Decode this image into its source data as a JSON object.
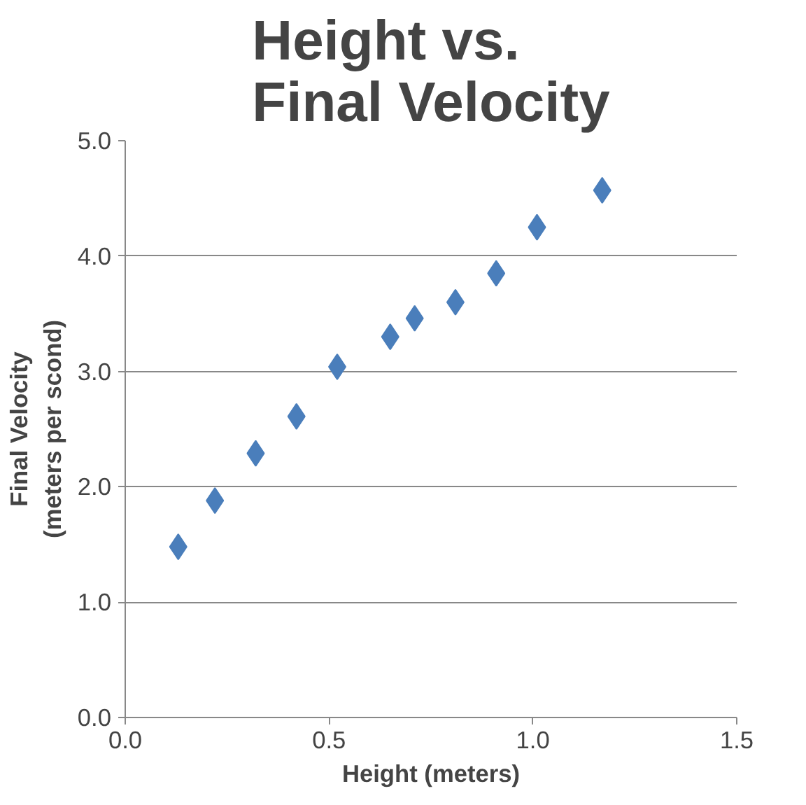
{
  "chart_data": {
    "type": "scatter",
    "title": "Height vs. Final Velocity",
    "xlabel": "Height (meters)",
    "ylabel": "Final Velocity (meters per scond)",
    "x": [
      0.13,
      0.22,
      0.32,
      0.42,
      0.52,
      0.65,
      0.71,
      0.81,
      0.91,
      1.01,
      1.17
    ],
    "series": [
      {
        "color": "#4a7ebb",
        "values": [
          1.48,
          1.88,
          2.29,
          2.61,
          3.04,
          3.3,
          3.46,
          3.6,
          3.85,
          4.25,
          4.57
        ]
      }
    ],
    "xlim": [
      0,
      1.5
    ],
    "xticks": [
      {
        "value": 0,
        "label": "0.0"
      },
      {
        "value": 0.5,
        "label": "0.5"
      },
      {
        "value": 1,
        "label": "1.0"
      },
      {
        "value": 1.5,
        "label": "1.5"
      }
    ],
    "ylim": [
      0,
      5
    ],
    "yticks": [
      {
        "value": 0,
        "label": "0.0"
      },
      {
        "value": 1,
        "label": "1.0"
      },
      {
        "value": 2,
        "label": "2.0"
      },
      {
        "value": 3,
        "label": "3.0"
      },
      {
        "value": 4,
        "label": "4.0"
      },
      {
        "value": 5,
        "label": "5.0"
      }
    ],
    "grid": "y",
    "marker": "diamond"
  }
}
